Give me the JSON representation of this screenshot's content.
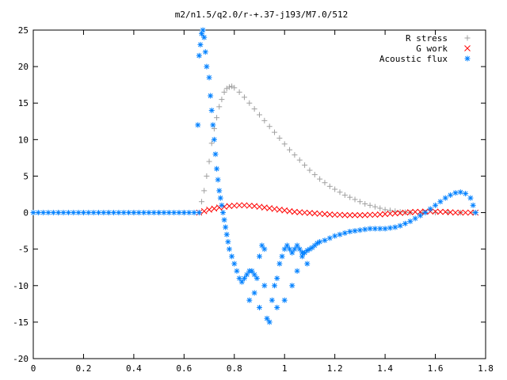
{
  "chart_data": {
    "type": "scatter",
    "title": "m2/n1.5/q2.0/r-+.37-j193/M7.0/512",
    "xlabel": "",
    "ylabel": "",
    "xlim": [
      0,
      1.8
    ],
    "ylim": [
      -20,
      25
    ],
    "x_ticks": [
      "0",
      "0.2",
      "0.4",
      "0.6",
      "0.8",
      "1",
      "1.2",
      "1.4",
      "1.6",
      "1.8"
    ],
    "y_ticks": [
      "-20",
      "-15",
      "-10",
      "-5",
      "0",
      "5",
      "10",
      "15",
      "20",
      "25"
    ],
    "grid": false,
    "legend_position": "top-right",
    "series": [
      {
        "name": "R stress",
        "marker": "+",
        "color": "#a0a0a0",
        "points": [
          [
            0.0,
            0
          ],
          [
            0.1,
            0
          ],
          [
            0.2,
            0
          ],
          [
            0.3,
            0
          ],
          [
            0.4,
            0
          ],
          [
            0.5,
            0
          ],
          [
            0.6,
            0
          ],
          [
            0.66,
            0
          ],
          [
            0.67,
            1.5
          ],
          [
            0.68,
            3
          ],
          [
            0.69,
            5
          ],
          [
            0.7,
            7
          ],
          [
            0.71,
            9.5
          ],
          [
            0.72,
            11.5
          ],
          [
            0.73,
            13
          ],
          [
            0.74,
            14.5
          ],
          [
            0.75,
            15.5
          ],
          [
            0.76,
            16.5
          ],
          [
            0.77,
            17
          ],
          [
            0.78,
            17.2
          ],
          [
            0.79,
            17.3
          ],
          [
            0.8,
            17.1
          ],
          [
            0.82,
            16.5
          ],
          [
            0.84,
            15.8
          ],
          [
            0.86,
            15
          ],
          [
            0.88,
            14.2
          ],
          [
            0.9,
            13.4
          ],
          [
            0.92,
            12.6
          ],
          [
            0.94,
            11.8
          ],
          [
            0.96,
            11
          ],
          [
            0.98,
            10.2
          ],
          [
            1.0,
            9.4
          ],
          [
            1.02,
            8.6
          ],
          [
            1.04,
            7.9
          ],
          [
            1.06,
            7.2
          ],
          [
            1.08,
            6.5
          ],
          [
            1.1,
            5.8
          ],
          [
            1.12,
            5.2
          ],
          [
            1.14,
            4.6
          ],
          [
            1.16,
            4.1
          ],
          [
            1.18,
            3.6
          ],
          [
            1.2,
            3.2
          ],
          [
            1.22,
            2.8
          ],
          [
            1.24,
            2.4
          ],
          [
            1.26,
            2.1
          ],
          [
            1.28,
            1.8
          ],
          [
            1.3,
            1.5
          ],
          [
            1.32,
            1.2
          ],
          [
            1.34,
            1.0
          ],
          [
            1.36,
            0.8
          ],
          [
            1.38,
            0.6
          ],
          [
            1.4,
            0.4
          ],
          [
            1.42,
            0.3
          ],
          [
            1.44,
            0.2
          ],
          [
            1.46,
            0.1
          ],
          [
            1.48,
            0.05
          ],
          [
            1.5,
            0
          ],
          [
            1.55,
            0
          ],
          [
            1.6,
            0
          ],
          [
            1.65,
            0
          ],
          [
            1.7,
            0
          ],
          [
            1.75,
            0
          ]
        ]
      },
      {
        "name": "G work",
        "marker": "x",
        "color": "#ff0000",
        "points": [
          [
            0.66,
            0
          ],
          [
            0.68,
            0.2
          ],
          [
            0.7,
            0.4
          ],
          [
            0.72,
            0.55
          ],
          [
            0.74,
            0.7
          ],
          [
            0.76,
            0.8
          ],
          [
            0.78,
            0.9
          ],
          [
            0.8,
            0.95
          ],
          [
            0.82,
            1.0
          ],
          [
            0.84,
            1.0
          ],
          [
            0.86,
            0.95
          ],
          [
            0.88,
            0.9
          ],
          [
            0.9,
            0.8
          ],
          [
            0.92,
            0.7
          ],
          [
            0.94,
            0.6
          ],
          [
            0.96,
            0.5
          ],
          [
            0.98,
            0.4
          ],
          [
            1.0,
            0.3
          ],
          [
            1.02,
            0.2
          ],
          [
            1.04,
            0.1
          ],
          [
            1.06,
            0.05
          ],
          [
            1.08,
            0
          ],
          [
            1.1,
            -0.05
          ],
          [
            1.12,
            -0.1
          ],
          [
            1.14,
            -0.15
          ],
          [
            1.16,
            -0.2
          ],
          [
            1.18,
            -0.25
          ],
          [
            1.2,
            -0.3
          ],
          [
            1.22,
            -0.3
          ],
          [
            1.24,
            -0.35
          ],
          [
            1.26,
            -0.35
          ],
          [
            1.28,
            -0.35
          ],
          [
            1.3,
            -0.35
          ],
          [
            1.32,
            -0.35
          ],
          [
            1.34,
            -0.3
          ],
          [
            1.36,
            -0.3
          ],
          [
            1.38,
            -0.25
          ],
          [
            1.4,
            -0.2
          ],
          [
            1.42,
            -0.15
          ],
          [
            1.44,
            -0.1
          ],
          [
            1.46,
            -0.05
          ],
          [
            1.48,
            0
          ],
          [
            1.5,
            0.05
          ],
          [
            1.52,
            0.1
          ],
          [
            1.54,
            0.1
          ],
          [
            1.56,
            0.15
          ],
          [
            1.58,
            0.15
          ],
          [
            1.6,
            0.15
          ],
          [
            1.62,
            0.1
          ],
          [
            1.64,
            0.1
          ],
          [
            1.66,
            0.05
          ],
          [
            1.68,
            0
          ],
          [
            1.7,
            0
          ],
          [
            1.72,
            0
          ],
          [
            1.74,
            0
          ],
          [
            1.76,
            0
          ]
        ]
      },
      {
        "name": "Acoustic flux",
        "marker": "*",
        "color": "#0080ff",
        "points": [
          [
            0.0,
            0
          ],
          [
            0.02,
            0
          ],
          [
            0.04,
            0
          ],
          [
            0.06,
            0
          ],
          [
            0.08,
            0
          ],
          [
            0.1,
            0
          ],
          [
            0.12,
            0
          ],
          [
            0.14,
            0
          ],
          [
            0.16,
            0
          ],
          [
            0.18,
            0
          ],
          [
            0.2,
            0
          ],
          [
            0.22,
            0
          ],
          [
            0.24,
            0
          ],
          [
            0.26,
            0
          ],
          [
            0.28,
            0
          ],
          [
            0.3,
            0
          ],
          [
            0.32,
            0
          ],
          [
            0.34,
            0
          ],
          [
            0.36,
            0
          ],
          [
            0.38,
            0
          ],
          [
            0.4,
            0
          ],
          [
            0.42,
            0
          ],
          [
            0.44,
            0
          ],
          [
            0.46,
            0
          ],
          [
            0.48,
            0
          ],
          [
            0.5,
            0
          ],
          [
            0.52,
            0
          ],
          [
            0.54,
            0
          ],
          [
            0.56,
            0
          ],
          [
            0.58,
            0
          ],
          [
            0.6,
            0
          ],
          [
            0.62,
            0
          ],
          [
            0.64,
            0
          ],
          [
            0.66,
            0
          ],
          [
            0.655,
            12
          ],
          [
            0.66,
            21.5
          ],
          [
            0.665,
            23
          ],
          [
            0.67,
            24.5
          ],
          [
            0.675,
            25
          ],
          [
            0.68,
            24
          ],
          [
            0.685,
            22
          ],
          [
            0.69,
            20
          ],
          [
            0.7,
            18.5
          ],
          [
            0.705,
            16
          ],
          [
            0.71,
            14
          ],
          [
            0.715,
            12
          ],
          [
            0.72,
            10
          ],
          [
            0.725,
            8
          ],
          [
            0.73,
            6
          ],
          [
            0.735,
            4.5
          ],
          [
            0.74,
            3
          ],
          [
            0.745,
            2
          ],
          [
            0.75,
            1
          ],
          [
            0.755,
            0
          ],
          [
            0.76,
            -1
          ],
          [
            0.765,
            -2
          ],
          [
            0.77,
            -3
          ],
          [
            0.775,
            -4
          ],
          [
            0.78,
            -5
          ],
          [
            0.79,
            -6
          ],
          [
            0.8,
            -7
          ],
          [
            0.81,
            -8
          ],
          [
            0.82,
            -9
          ],
          [
            0.83,
            -9.5
          ],
          [
            0.84,
            -9
          ],
          [
            0.85,
            -8.5
          ],
          [
            0.86,
            -8
          ],
          [
            0.87,
            -8
          ],
          [
            0.88,
            -8.5
          ],
          [
            0.89,
            -9
          ],
          [
            0.9,
            -6
          ],
          [
            0.91,
            -4.5
          ],
          [
            0.92,
            -5
          ],
          [
            0.93,
            -14.5
          ],
          [
            0.94,
            -15
          ],
          [
            0.95,
            -12
          ],
          [
            0.96,
            -10
          ],
          [
            0.97,
            -9
          ],
          [
            0.98,
            -7
          ],
          [
            0.99,
            -6
          ],
          [
            1.0,
            -5
          ],
          [
            1.01,
            -4.5
          ],
          [
            1.02,
            -5
          ],
          [
            1.03,
            -5.5
          ],
          [
            1.04,
            -5
          ],
          [
            1.05,
            -4.5
          ],
          [
            1.06,
            -5
          ],
          [
            1.07,
            -5.5
          ],
          [
            1.08,
            -5.5
          ],
          [
            1.09,
            -5.2
          ],
          [
            1.1,
            -5
          ],
          [
            1.11,
            -4.8
          ],
          [
            1.12,
            -4.5
          ],
          [
            1.13,
            -4.2
          ],
          [
            0.86,
            -12
          ],
          [
            0.88,
            -11
          ],
          [
            0.9,
            -13
          ],
          [
            0.92,
            -10
          ],
          [
            0.97,
            -13
          ],
          [
            1.0,
            -12
          ],
          [
            1.03,
            -10
          ],
          [
            1.05,
            -8
          ],
          [
            1.07,
            -6
          ],
          [
            1.09,
            -7
          ],
          [
            1.14,
            -4
          ],
          [
            1.16,
            -3.8
          ],
          [
            1.18,
            -3.5
          ],
          [
            1.2,
            -3.2
          ],
          [
            1.22,
            -3
          ],
          [
            1.24,
            -2.8
          ],
          [
            1.26,
            -2.6
          ],
          [
            1.28,
            -2.5
          ],
          [
            1.3,
            -2.4
          ],
          [
            1.32,
            -2.3
          ],
          [
            1.34,
            -2.2
          ],
          [
            1.36,
            -2.2
          ],
          [
            1.38,
            -2.2
          ],
          [
            1.4,
            -2.2
          ],
          [
            1.42,
            -2.1
          ],
          [
            1.44,
            -2
          ],
          [
            1.46,
            -1.8
          ],
          [
            1.48,
            -1.5
          ],
          [
            1.5,
            -1.2
          ],
          [
            1.52,
            -0.8
          ],
          [
            1.54,
            -0.4
          ],
          [
            1.56,
            0
          ],
          [
            1.58,
            0.5
          ],
          [
            1.6,
            1
          ],
          [
            1.62,
            1.5
          ],
          [
            1.64,
            2
          ],
          [
            1.66,
            2.4
          ],
          [
            1.68,
            2.7
          ],
          [
            1.7,
            2.8
          ],
          [
            1.72,
            2.6
          ],
          [
            1.74,
            2
          ],
          [
            1.75,
            1
          ],
          [
            1.76,
            0
          ]
        ]
      }
    ]
  }
}
